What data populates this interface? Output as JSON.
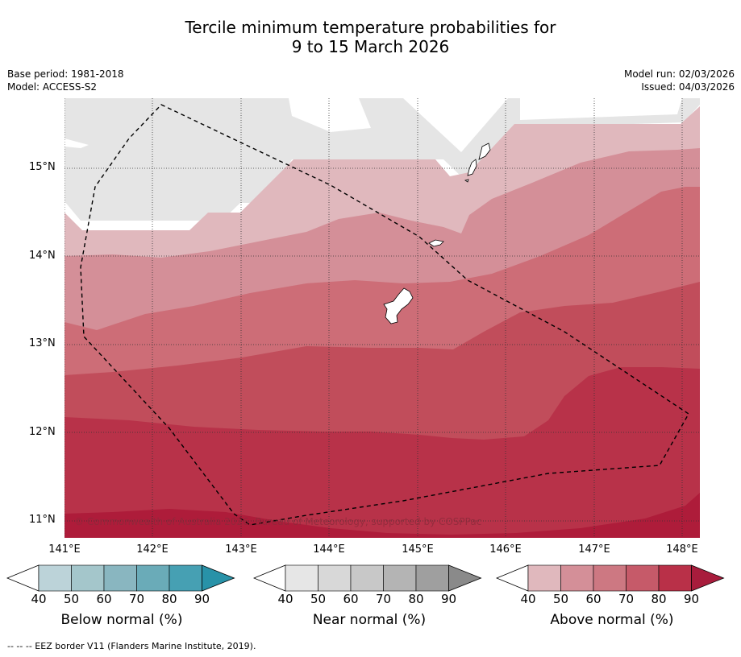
{
  "title": {
    "line1": "Tercile minimum temperature probabilities for",
    "line2": "9 to 15 March 2026"
  },
  "meta": {
    "base_period": "Base period: 1981-2018",
    "model": "Model: ACCESS-S2",
    "model_run": "Model run: 02/03/2026",
    "issued": "Issued: 04/03/2026"
  },
  "axes": {
    "lat_labels": [
      "15°N",
      "14°N",
      "13°N",
      "12°N",
      "11°N"
    ],
    "lon_labels": [
      "141°E",
      "142°E",
      "143°E",
      "144°E",
      "145°E",
      "146°E",
      "147°E",
      "148°E"
    ]
  },
  "copyright": "© Commonwealth of Australia 2026, Bureau of Meteorology, supported by COSPPac",
  "colorbars": [
    {
      "title": "Below normal (%)",
      "ticks": [
        "40",
        "50",
        "60",
        "70",
        "80",
        "90"
      ],
      "colors": [
        "#bcd3d9",
        "#a4c6cb",
        "#89b6c0",
        "#6aabb8",
        "#46a0b3",
        "#2892a8"
      ]
    },
    {
      "title": "Near normal (%)",
      "ticks": [
        "40",
        "50",
        "60",
        "70",
        "80",
        "90"
      ],
      "colors": [
        "#e6e6e6",
        "#d8d8d8",
        "#c8c8c8",
        "#b4b4b4",
        "#9f9f9f",
        "#8a8a8a"
      ]
    },
    {
      "title": "Above normal (%)",
      "ticks": [
        "40",
        "50",
        "60",
        "70",
        "80",
        "90"
      ],
      "colors": [
        "#e0b8bd",
        "#d48f98",
        "#cd7882",
        "#c65a69",
        "#b93048",
        "#a81c3c"
      ]
    }
  ],
  "footer": "-- -- -- EEZ border V11 (Flanders Marine Institute, 2019).",
  "map_colors": {
    "near40": "#e5e5e5",
    "above40": "#e0b8bd",
    "above50": "#d48f98",
    "above60": "#cd6d77",
    "above70": "#c14d5b",
    "above80": "#b83249",
    "above90": "#ae1c3a"
  }
}
